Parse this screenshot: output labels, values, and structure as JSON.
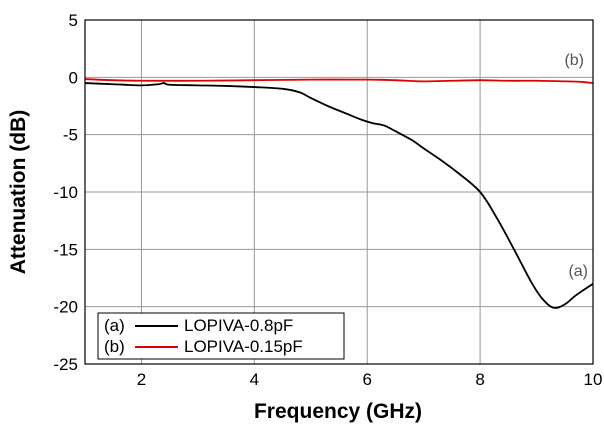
{
  "chart_data": {
    "type": "line",
    "xlabel": "Frequency (GHz)",
    "ylabel": "Attenuation (dB)",
    "xlim": [
      1,
      10
    ],
    "ylim": [
      -25,
      5
    ],
    "xticks": [
      2,
      4,
      6,
      8,
      10
    ],
    "yticks": [
      5,
      0,
      -5,
      -10,
      -15,
      -20,
      -25
    ],
    "grid": true,
    "legend_position": "bottom-left",
    "series": [
      {
        "name": "LOPIVA-0.8pF",
        "legend_prefix": "(a)",
        "annotation": "(a)",
        "color": "#000000",
        "x": [
          1.0,
          1.5,
          2.0,
          2.3,
          2.4,
          2.5,
          3.0,
          3.5,
          4.0,
          4.5,
          4.8,
          5.0,
          5.3,
          5.6,
          5.9,
          6.1,
          6.3,
          6.5,
          6.8,
          7.0,
          7.3,
          7.6,
          8.0,
          8.3,
          8.6,
          8.9,
          9.1,
          9.3,
          9.5,
          9.7,
          10.0
        ],
        "y": [
          -0.5,
          -0.6,
          -0.7,
          -0.6,
          -0.5,
          -0.65,
          -0.7,
          -0.75,
          -0.85,
          -1.0,
          -1.3,
          -1.8,
          -2.5,
          -3.1,
          -3.7,
          -4.0,
          -4.2,
          -4.7,
          -5.5,
          -6.2,
          -7.2,
          -8.3,
          -10.0,
          -12.3,
          -15.0,
          -17.8,
          -19.3,
          -20.1,
          -19.8,
          -19.0,
          -18.0
        ]
      },
      {
        "name": "LOPIVA-0.15pF",
        "legend_prefix": "(b)",
        "annotation": "(b)",
        "color": "#e00000",
        "x": [
          1.0,
          1.5,
          2.0,
          3.0,
          4.0,
          5.0,
          6.0,
          6.5,
          7.0,
          7.5,
          8.0,
          8.5,
          9.0,
          9.5,
          9.8,
          10.0
        ],
        "y": [
          -0.15,
          -0.25,
          -0.3,
          -0.3,
          -0.25,
          -0.2,
          -0.2,
          -0.25,
          -0.35,
          -0.3,
          -0.25,
          -0.3,
          -0.3,
          -0.35,
          -0.4,
          -0.5
        ]
      }
    ]
  }
}
